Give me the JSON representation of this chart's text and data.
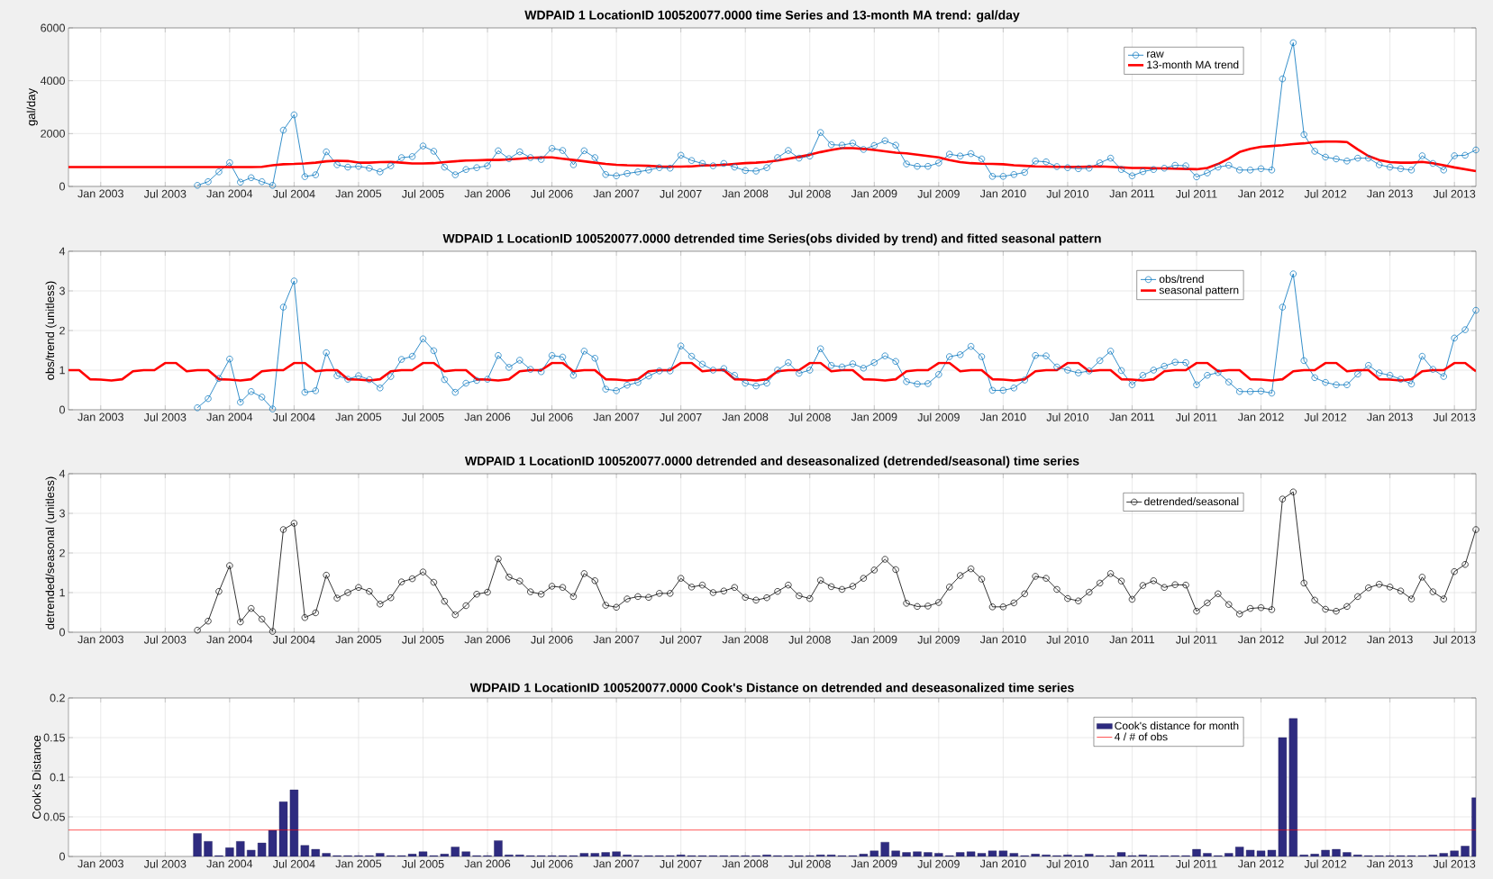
{
  "chart_data": [
    {
      "type": "line",
      "title": "WDPAID 1 LocationID 100520077.0000 time Series and 13-month MA trend: gal/day",
      "ylabel": "gal/day",
      "x": [
        "2002-10",
        "2002-11",
        "2002-12",
        "2003-01",
        "2003-02",
        "2003-03",
        "2003-04",
        "2003-05",
        "2003-06",
        "2003-07",
        "2003-08",
        "2003-09",
        "2003-10",
        "2003-11",
        "2003-12",
        "2004-01",
        "2004-02",
        "2004-03",
        "2004-04",
        "2004-05",
        "2004-06",
        "2004-07",
        "2004-08",
        "2004-09",
        "2004-10",
        "2004-11",
        "2004-12",
        "2005-01",
        "2005-02",
        "2005-03",
        "2005-04",
        "2005-05",
        "2005-06",
        "2005-07",
        "2005-08",
        "2005-09",
        "2005-10",
        "2005-11",
        "2005-12",
        "2006-01",
        "2006-02",
        "2006-03",
        "2006-04",
        "2006-05",
        "2006-06",
        "2006-07",
        "2006-08",
        "2006-09",
        "2006-10",
        "2006-11",
        "2006-12",
        "2007-01",
        "2007-02",
        "2007-03",
        "2007-04",
        "2007-05",
        "2007-06",
        "2007-07",
        "2007-08",
        "2007-09",
        "2007-10",
        "2007-11",
        "2007-12",
        "2008-01",
        "2008-02",
        "2008-03",
        "2008-04",
        "2008-05",
        "2008-06",
        "2008-07",
        "2008-08",
        "2008-09",
        "2008-10",
        "2008-11",
        "2008-12",
        "2009-01",
        "2009-02",
        "2009-03",
        "2009-04",
        "2009-05",
        "2009-06",
        "2009-07",
        "2009-08",
        "2009-09",
        "2009-10",
        "2009-11",
        "2009-12",
        "2010-01",
        "2010-02",
        "2010-03",
        "2010-04",
        "2010-05",
        "2010-06",
        "2010-07",
        "2010-08",
        "2010-09",
        "2010-10",
        "2010-11",
        "2010-12",
        "2011-01",
        "2011-02",
        "2011-03",
        "2011-04",
        "2011-05",
        "2011-06",
        "2011-07",
        "2011-08",
        "2011-09",
        "2011-10",
        "2011-11",
        "2011-12",
        "2012-01",
        "2012-02",
        "2012-03",
        "2012-04",
        "2012-05",
        "2012-06",
        "2012-07",
        "2012-08",
        "2012-09",
        "2012-10",
        "2012-11",
        "2012-12",
        "2013-01",
        "2013-02",
        "2013-03",
        "2013-04",
        "2013-05",
        "2013-06",
        "2013-07",
        "2013-08",
        "2013-09"
      ],
      "xlim": [
        "2002-10",
        "2013-09"
      ],
      "xticks": [
        {
          "value": "2003-01",
          "label": "Jan 2003"
        },
        {
          "value": "2003-07",
          "label": "Jul 2003"
        },
        {
          "value": "2004-01",
          "label": "Jan 2004"
        },
        {
          "value": "2004-07",
          "label": "Jul 2004"
        },
        {
          "value": "2005-01",
          "label": "Jan 2005"
        },
        {
          "value": "2005-07",
          "label": "Jul 2005"
        },
        {
          "value": "2006-01",
          "label": "Jan 2006"
        },
        {
          "value": "2006-07",
          "label": "Jul 2006"
        },
        {
          "value": "2007-01",
          "label": "Jan 2007"
        },
        {
          "value": "2007-07",
          "label": "Jul 2007"
        },
        {
          "value": "2008-01",
          "label": "Jan 2008"
        },
        {
          "value": "2008-07",
          "label": "Jul 2008"
        },
        {
          "value": "2009-01",
          "label": "Jan 2009"
        },
        {
          "value": "2009-07",
          "label": "Jul 2009"
        },
        {
          "value": "2010-01",
          "label": "Jan 2010"
        },
        {
          "value": "2010-07",
          "label": "Jul 2010"
        },
        {
          "value": "2011-01",
          "label": "Jan 2011"
        },
        {
          "value": "2011-07",
          "label": "Jul 2011"
        },
        {
          "value": "2012-01",
          "label": "Jan 2012"
        },
        {
          "value": "2012-07",
          "label": "Jul 2012"
        },
        {
          "value": "2013-01",
          "label": "Jan 2013"
        },
        {
          "value": "2013-07",
          "label": "Jul 2013"
        }
      ],
      "ylim": [
        0,
        6000
      ],
      "yticks": [
        0,
        2000,
        4000,
        6000
      ],
      "grid": true,
      "legend": "top right",
      "series": [
        {
          "name": "raw",
          "color": "#0072bd",
          "marker": "circle",
          "values": [
            null,
            null,
            null,
            null,
            null,
            null,
            null,
            null,
            null,
            null,
            null,
            null,
            40,
            180,
            550,
            900,
            160,
            330,
            180,
            40,
            2130,
            2710,
            370,
            440,
            1310,
            820,
            730,
            760,
            690,
            550,
            780,
            1090,
            1130,
            1530,
            1330,
            730,
            440,
            640,
            710,
            780,
            1350,
            1050,
            1310,
            1090,
            1020,
            1440,
            1360,
            820,
            1350,
            1090,
            450,
            400,
            490,
            550,
            620,
            710,
            690,
            1180,
            980,
            870,
            780,
            870,
            730,
            600,
            580,
            710,
            1090,
            1360,
            1070,
            1150,
            2040,
            1580,
            1560,
            1640,
            1400,
            1550,
            1730,
            1560,
            850,
            760,
            760,
            890,
            1220,
            1150,
            1240,
            1040,
            380,
            380,
            450,
            530,
            960,
            930,
            750,
            710,
            670,
            690,
            890,
            1070,
            640,
            400,
            560,
            640,
            690,
            800,
            780,
            360,
            510,
            730,
            800,
            620,
            620,
            670,
            620,
            4070,
            5440,
            1960,
            1330,
            1110,
            1040,
            960,
            1070,
            1070,
            820,
            730,
            670,
            620,
            1160,
            870,
            620,
            1160,
            1180,
            1380
          ]
        },
        {
          "name": "13-month MA trend",
          "color": "#ff0000",
          "marker": "none",
          "values": [
            730,
            730,
            730,
            730,
            730,
            730,
            730,
            730,
            730,
            730,
            730,
            730,
            730,
            730,
            730,
            730,
            730,
            730,
            740,
            800,
            840,
            850,
            870,
            900,
            950,
            970,
            960,
            900,
            900,
            920,
            930,
            900,
            870,
            870,
            880,
            920,
            950,
            980,
            990,
            1000,
            1000,
            1020,
            1050,
            1080,
            1100,
            1100,
            1050,
            1000,
            950,
            900,
            850,
            820,
            800,
            790,
            780,
            760,
            750,
            750,
            760,
            790,
            800,
            820,
            850,
            880,
            900,
            930,
            980,
            1050,
            1120,
            1200,
            1300,
            1380,
            1450,
            1450,
            1420,
            1380,
            1330,
            1280,
            1250,
            1200,
            1150,
            1100,
            1000,
            920,
            880,
            860,
            850,
            840,
            800,
            780,
            760,
            750,
            740,
            740,
            740,
            750,
            760,
            740,
            720,
            700,
            700,
            690,
            680,
            670,
            660,
            650,
            700,
            850,
            1050,
            1300,
            1420,
            1500,
            1530,
            1560,
            1600,
            1630,
            1680,
            1700,
            1700,
            1680,
            1400,
            1150,
            1000,
            920,
            900,
            900,
            930,
            880,
            800,
            720,
            650,
            580
          ]
        }
      ]
    },
    {
      "type": "line",
      "title": "WDPAID 1 LocationID 100520077.0000 detrended time Series(obs divided by trend) and fitted seasonal pattern",
      "ylabel": "obs/trend (unitless)",
      "x": [
        "2002-10",
        "2002-11",
        "2002-12",
        "2003-01",
        "2003-02",
        "2003-03",
        "2003-04",
        "2003-05",
        "2003-06",
        "2003-07",
        "2003-08",
        "2003-09",
        "2003-10",
        "2003-11",
        "2003-12",
        "2004-01",
        "2004-02",
        "2004-03",
        "2004-04",
        "2004-05",
        "2004-06",
        "2004-07",
        "2004-08",
        "2004-09",
        "2004-10",
        "2004-11",
        "2004-12",
        "2005-01",
        "2005-02",
        "2005-03",
        "2005-04",
        "2005-05",
        "2005-06",
        "2005-07",
        "2005-08",
        "2005-09",
        "2005-10",
        "2005-11",
        "2005-12",
        "2006-01",
        "2006-02",
        "2006-03",
        "2006-04",
        "2006-05",
        "2006-06",
        "2006-07",
        "2006-08",
        "2006-09",
        "2006-10",
        "2006-11",
        "2006-12",
        "2007-01",
        "2007-02",
        "2007-03",
        "2007-04",
        "2007-05",
        "2007-06",
        "2007-07",
        "2007-08",
        "2007-09",
        "2007-10",
        "2007-11",
        "2007-12",
        "2008-01",
        "2008-02",
        "2008-03",
        "2008-04",
        "2008-05",
        "2008-06",
        "2008-07",
        "2008-08",
        "2008-09",
        "2008-10",
        "2008-11",
        "2008-12",
        "2009-01",
        "2009-02",
        "2009-03",
        "2009-04",
        "2009-05",
        "2009-06",
        "2009-07",
        "2009-08",
        "2009-09",
        "2009-10",
        "2009-11",
        "2009-12",
        "2010-01",
        "2010-02",
        "2010-03",
        "2010-04",
        "2010-05",
        "2010-06",
        "2010-07",
        "2010-08",
        "2010-09",
        "2010-10",
        "2010-11",
        "2010-12",
        "2011-01",
        "2011-02",
        "2011-03",
        "2011-04",
        "2011-05",
        "2011-06",
        "2011-07",
        "2011-08",
        "2011-09",
        "2011-10",
        "2011-11",
        "2011-12",
        "2012-01",
        "2012-02",
        "2012-03",
        "2012-04",
        "2012-05",
        "2012-06",
        "2012-07",
        "2012-08",
        "2012-09",
        "2012-10",
        "2012-11",
        "2012-12",
        "2013-01",
        "2013-02",
        "2013-03",
        "2013-04",
        "2013-05",
        "2013-06",
        "2013-07",
        "2013-08",
        "2013-09"
      ],
      "xlim": [
        "2002-10",
        "2013-09"
      ],
      "xticks": [
        {
          "value": "2003-01",
          "label": "Jan 2003"
        },
        {
          "value": "2003-07",
          "label": "Jul 2003"
        },
        {
          "value": "2004-01",
          "label": "Jan 2004"
        },
        {
          "value": "2004-07",
          "label": "Jul 2004"
        },
        {
          "value": "2005-01",
          "label": "Jan 2005"
        },
        {
          "value": "2005-07",
          "label": "Jul 2005"
        },
        {
          "value": "2006-01",
          "label": "Jan 2006"
        },
        {
          "value": "2006-07",
          "label": "Jul 2006"
        },
        {
          "value": "2007-01",
          "label": "Jan 2007"
        },
        {
          "value": "2007-07",
          "label": "Jul 2007"
        },
        {
          "value": "2008-01",
          "label": "Jan 2008"
        },
        {
          "value": "2008-07",
          "label": "Jul 2008"
        },
        {
          "value": "2009-01",
          "label": "Jan 2009"
        },
        {
          "value": "2009-07",
          "label": "Jul 2009"
        },
        {
          "value": "2010-01",
          "label": "Jan 2010"
        },
        {
          "value": "2010-07",
          "label": "Jul 2010"
        },
        {
          "value": "2011-01",
          "label": "Jan 2011"
        },
        {
          "value": "2011-07",
          "label": "Jul 2011"
        },
        {
          "value": "2012-01",
          "label": "Jan 2012"
        },
        {
          "value": "2012-07",
          "label": "Jul 2012"
        },
        {
          "value": "2013-01",
          "label": "Jan 2013"
        },
        {
          "value": "2013-07",
          "label": "Jul 2013"
        }
      ],
      "ylim": [
        0,
        4
      ],
      "yticks": [
        0,
        1,
        2,
        3,
        4
      ],
      "grid": true,
      "legend": "top right",
      "series": [
        {
          "name": "obs/trend",
          "color": "#0072bd",
          "marker": "circle",
          "values": [
            null,
            null,
            null,
            null,
            null,
            null,
            null,
            null,
            null,
            null,
            null,
            null,
            0.05,
            0.28,
            0.79,
            1.28,
            0.19,
            0.46,
            0.32,
            0.02,
            2.59,
            3.25,
            0.44,
            0.48,
            1.44,
            0.86,
            0.77,
            0.86,
            0.76,
            0.55,
            0.84,
            1.27,
            1.35,
            1.79,
            1.49,
            0.76,
            0.44,
            0.67,
            0.74,
            0.77,
            1.37,
            1.07,
            1.25,
            1.02,
            0.96,
            1.37,
            1.33,
            0.87,
            1.48,
            1.3,
            0.52,
            0.48,
            0.62,
            0.69,
            0.85,
            0.98,
            0.98,
            1.61,
            1.35,
            1.15,
            1.0,
            1.04,
            0.87,
            0.67,
            0.6,
            0.67,
            1.0,
            1.19,
            0.92,
            1.0,
            1.54,
            1.12,
            1.08,
            1.16,
            1.05,
            1.19,
            1.36,
            1.22,
            0.71,
            0.65,
            0.66,
            0.89,
            1.34,
            1.39,
            1.6,
            1.34,
            0.49,
            0.49,
            0.55,
            0.75,
            1.37,
            1.36,
            1.08,
            1.0,
            0.93,
            0.98,
            1.24,
            1.48,
            0.99,
            0.63,
            0.87,
            1.0,
            1.1,
            1.2,
            1.19,
            0.63,
            0.87,
            0.94,
            0.7,
            0.46,
            0.46,
            0.47,
            0.42,
            2.59,
            3.43,
            1.24,
            0.81,
            0.69,
            0.63,
            0.63,
            0.9,
            1.12,
            0.93,
            0.87,
            0.77,
            0.65,
            1.35,
            1.02,
            0.84,
            1.81,
            2.02,
            2.51
          ]
        },
        {
          "name": "seasonal pattern",
          "color": "#ff0000",
          "marker": "none",
          "values": [
            1.0,
            1.0,
            0.77,
            0.76,
            0.74,
            0.77,
            0.97,
            1.0,
            1.0,
            1.18,
            1.18,
            0.97,
            1.0,
            1.0,
            0.77,
            0.76,
            0.74,
            0.77,
            0.97,
            1.0,
            1.0,
            1.18,
            1.18,
            0.97,
            1.0,
            1.0,
            0.77,
            0.76,
            0.74,
            0.77,
            0.97,
            1.0,
            1.0,
            1.18,
            1.18,
            0.97,
            1.0,
            1.0,
            0.77,
            0.76,
            0.74,
            0.77,
            0.97,
            1.0,
            1.0,
            1.18,
            1.18,
            0.97,
            1.0,
            1.0,
            0.77,
            0.76,
            0.74,
            0.77,
            0.97,
            1.0,
            1.0,
            1.18,
            1.18,
            0.97,
            1.0,
            1.0,
            0.77,
            0.76,
            0.74,
            0.77,
            0.97,
            1.0,
            1.0,
            1.18,
            1.18,
            0.97,
            1.0,
            1.0,
            0.77,
            0.76,
            0.74,
            0.77,
            0.97,
            1.0,
            1.0,
            1.18,
            1.18,
            0.97,
            1.0,
            1.0,
            0.77,
            0.76,
            0.74,
            0.77,
            0.97,
            1.0,
            1.0,
            1.18,
            1.18,
            0.97,
            1.0,
            1.0,
            0.77,
            0.76,
            0.74,
            0.77,
            0.97,
            1.0,
            1.0,
            1.18,
            1.18,
            0.97,
            1.0,
            1.0,
            0.77,
            0.76,
            0.74,
            0.77,
            0.97,
            1.0,
            1.0,
            1.18,
            1.18,
            0.97,
            1.0,
            1.0,
            0.77,
            0.76,
            0.74,
            0.77,
            0.97,
            1.0,
            1.0,
            1.18,
            1.18,
            0.97
          ]
        }
      ]
    },
    {
      "type": "line",
      "title": "WDPAID 1 LocationID 100520077.0000 detrended and deseasonalized (detrended/seasonal) time series",
      "ylabel": "detrended/seasonal (unitless)",
      "x": [
        "2003-10",
        "2003-11",
        "2003-12",
        "2004-01",
        "2004-02",
        "2004-03",
        "2004-04",
        "2004-05",
        "2004-06",
        "2004-07",
        "2004-08",
        "2004-09",
        "2004-10",
        "2004-11",
        "2004-12",
        "2005-01",
        "2005-02",
        "2005-03",
        "2005-04",
        "2005-05",
        "2005-06",
        "2005-07",
        "2005-08",
        "2005-09",
        "2005-10",
        "2005-11",
        "2005-12",
        "2006-01",
        "2006-02",
        "2006-03",
        "2006-04",
        "2006-05",
        "2006-06",
        "2006-07",
        "2006-08",
        "2006-09",
        "2006-10",
        "2006-11",
        "2006-12",
        "2007-01",
        "2007-02",
        "2007-03",
        "2007-04",
        "2007-05",
        "2007-06",
        "2007-07",
        "2007-08",
        "2007-09",
        "2007-10",
        "2007-11",
        "2007-12",
        "2008-01",
        "2008-02",
        "2008-03",
        "2008-04",
        "2008-05",
        "2008-06",
        "2008-07",
        "2008-08",
        "2008-09",
        "2008-10",
        "2008-11",
        "2008-12",
        "2009-01",
        "2009-02",
        "2009-03",
        "2009-04",
        "2009-05",
        "2009-06",
        "2009-07",
        "2009-08",
        "2009-09",
        "2009-10",
        "2009-11",
        "2009-12",
        "2010-01",
        "2010-02",
        "2010-03",
        "2010-04",
        "2010-05",
        "2010-06",
        "2010-07",
        "2010-08",
        "2010-09",
        "2010-10",
        "2010-11",
        "2010-12",
        "2011-01",
        "2011-02",
        "2011-03",
        "2011-04",
        "2011-05",
        "2011-06",
        "2011-07",
        "2011-08",
        "2011-09",
        "2011-10",
        "2011-11",
        "2011-12",
        "2012-01",
        "2012-02",
        "2012-03",
        "2012-04",
        "2012-05",
        "2012-06",
        "2012-07",
        "2012-08",
        "2012-09",
        "2012-10",
        "2012-11",
        "2012-12",
        "2013-01",
        "2013-02",
        "2013-03",
        "2013-04",
        "2013-05",
        "2013-06",
        "2013-07",
        "2013-08",
        "2013-09"
      ],
      "xlim": [
        "2002-10",
        "2013-09"
      ],
      "xticks": [
        {
          "value": "2003-01",
          "label": "Jan 2003"
        },
        {
          "value": "2003-07",
          "label": "Jul 2003"
        },
        {
          "value": "2004-01",
          "label": "Jan 2004"
        },
        {
          "value": "2004-07",
          "label": "Jul 2004"
        },
        {
          "value": "2005-01",
          "label": "Jan 2005"
        },
        {
          "value": "2005-07",
          "label": "Jul 2005"
        },
        {
          "value": "2006-01",
          "label": "Jan 2006"
        },
        {
          "value": "2006-07",
          "label": "Jul 2006"
        },
        {
          "value": "2007-01",
          "label": "Jan 2007"
        },
        {
          "value": "2007-07",
          "label": "Jul 2007"
        },
        {
          "value": "2008-01",
          "label": "Jan 2008"
        },
        {
          "value": "2008-07",
          "label": "Jul 2008"
        },
        {
          "value": "2009-01",
          "label": "Jan 2009"
        },
        {
          "value": "2009-07",
          "label": "Jul 2009"
        },
        {
          "value": "2010-01",
          "label": "Jan 2010"
        },
        {
          "value": "2010-07",
          "label": "Jul 2010"
        },
        {
          "value": "2011-01",
          "label": "Jan 2011"
        },
        {
          "value": "2011-07",
          "label": "Jul 2011"
        },
        {
          "value": "2012-01",
          "label": "Jan 2012"
        },
        {
          "value": "2012-07",
          "label": "Jul 2012"
        },
        {
          "value": "2013-01",
          "label": "Jan 2013"
        },
        {
          "value": "2013-07",
          "label": "Jul 2013"
        }
      ],
      "ylim": [
        0,
        4
      ],
      "yticks": [
        0,
        1,
        2,
        3,
        4
      ],
      "grid": true,
      "legend": "top right",
      "series": [
        {
          "name": "detrended/seasonal",
          "color": "#000000",
          "marker": "circle",
          "values": [
            0.05,
            0.28,
            1.03,
            1.68,
            0.26,
            0.6,
            0.33,
            0.02,
            2.59,
            2.75,
            0.37,
            0.49,
            1.44,
            0.86,
            1.0,
            1.13,
            1.03,
            0.71,
            0.87,
            1.27,
            1.35,
            1.52,
            1.26,
            0.78,
            0.44,
            0.67,
            0.96,
            1.01,
            1.85,
            1.39,
            1.29,
            1.02,
            0.96,
            1.16,
            1.13,
            0.9,
            1.48,
            1.3,
            0.68,
            0.63,
            0.84,
            0.9,
            0.88,
            0.98,
            0.98,
            1.36,
            1.14,
            1.19,
            1.0,
            1.04,
            1.13,
            0.88,
            0.81,
            0.87,
            1.03,
            1.19,
            0.92,
            0.85,
            1.31,
            1.15,
            1.08,
            1.16,
            1.36,
            1.57,
            1.84,
            1.58,
            0.73,
            0.65,
            0.66,
            0.75,
            1.14,
            1.43,
            1.6,
            1.34,
            0.64,
            0.64,
            0.74,
            0.97,
            1.41,
            1.36,
            1.08,
            0.85,
            0.79,
            1.01,
            1.24,
            1.48,
            1.29,
            0.83,
            1.18,
            1.3,
            1.13,
            1.2,
            1.19,
            0.53,
            0.74,
            0.97,
            0.7,
            0.46,
            0.6,
            0.62,
            0.57,
            3.36,
            3.54,
            1.24,
            0.81,
            0.58,
            0.53,
            0.65,
            0.9,
            1.12,
            1.21,
            1.14,
            1.04,
            0.84,
            1.39,
            1.02,
            0.84,
            1.53,
            1.71,
            2.59
          ]
        }
      ]
    },
    {
      "type": "bar",
      "title": "WDPAID 1 LocationID 100520077.0000 Cook's Distance on detrended and deseasonalized time series",
      "ylabel": "Cook's Distance",
      "x": [
        "2003-10",
        "2003-11",
        "2003-12",
        "2004-01",
        "2004-02",
        "2004-03",
        "2004-04",
        "2004-05",
        "2004-06",
        "2004-07",
        "2004-08",
        "2004-09",
        "2004-10",
        "2004-11",
        "2004-12",
        "2005-01",
        "2005-02",
        "2005-03",
        "2005-04",
        "2005-05",
        "2005-06",
        "2005-07",
        "2005-08",
        "2005-09",
        "2005-10",
        "2005-11",
        "2005-12",
        "2006-01",
        "2006-02",
        "2006-03",
        "2006-04",
        "2006-05",
        "2006-06",
        "2006-07",
        "2006-08",
        "2006-09",
        "2006-10",
        "2006-11",
        "2006-12",
        "2007-01",
        "2007-02",
        "2007-03",
        "2007-04",
        "2007-05",
        "2007-06",
        "2007-07",
        "2007-08",
        "2007-09",
        "2007-10",
        "2007-11",
        "2007-12",
        "2008-01",
        "2008-02",
        "2008-03",
        "2008-04",
        "2008-05",
        "2008-06",
        "2008-07",
        "2008-08",
        "2008-09",
        "2008-10",
        "2008-11",
        "2008-12",
        "2009-01",
        "2009-02",
        "2009-03",
        "2009-04",
        "2009-05",
        "2009-06",
        "2009-07",
        "2009-08",
        "2009-09",
        "2009-10",
        "2009-11",
        "2009-12",
        "2010-01",
        "2010-02",
        "2010-03",
        "2010-04",
        "2010-05",
        "2010-06",
        "2010-07",
        "2010-08",
        "2010-09",
        "2010-10",
        "2010-11",
        "2010-12",
        "2011-01",
        "2011-02",
        "2011-03",
        "2011-04",
        "2011-05",
        "2011-06",
        "2011-07",
        "2011-08",
        "2011-09",
        "2011-10",
        "2011-11",
        "2011-12",
        "2012-01",
        "2012-02",
        "2012-03",
        "2012-04",
        "2012-05",
        "2012-06",
        "2012-07",
        "2012-08",
        "2012-09",
        "2012-10",
        "2012-11",
        "2012-12",
        "2013-01",
        "2013-02",
        "2013-03",
        "2013-04",
        "2013-05",
        "2013-06",
        "2013-07",
        "2013-08",
        "2013-09"
      ],
      "xlim": [
        "2002-10",
        "2013-09"
      ],
      "xticks": [
        {
          "value": "2003-01",
          "label": "Jan 2003"
        },
        {
          "value": "2003-07",
          "label": "Jul 2003"
        },
        {
          "value": "2004-01",
          "label": "Jan 2004"
        },
        {
          "value": "2004-07",
          "label": "Jul 2004"
        },
        {
          "value": "2005-01",
          "label": "Jan 2005"
        },
        {
          "value": "2005-07",
          "label": "Jul 2005"
        },
        {
          "value": "2006-01",
          "label": "Jan 2006"
        },
        {
          "value": "2006-07",
          "label": "Jul 2006"
        },
        {
          "value": "2007-01",
          "label": "Jan 2007"
        },
        {
          "value": "2007-07",
          "label": "Jul 2007"
        },
        {
          "value": "2008-01",
          "label": "Jan 2008"
        },
        {
          "value": "2008-07",
          "label": "Jul 2008"
        },
        {
          "value": "2009-01",
          "label": "Jan 2009"
        },
        {
          "value": "2009-07",
          "label": "Jul 2009"
        },
        {
          "value": "2010-01",
          "label": "Jan 2010"
        },
        {
          "value": "2010-07",
          "label": "Jul 2010"
        },
        {
          "value": "2011-01",
          "label": "Jan 2011"
        },
        {
          "value": "2011-07",
          "label": "Jul 2011"
        },
        {
          "value": "2012-01",
          "label": "Jan 2012"
        },
        {
          "value": "2012-07",
          "label": "Jul 2012"
        },
        {
          "value": "2013-01",
          "label": "Jan 2013"
        },
        {
          "value": "2013-07",
          "label": "Jul 2013"
        }
      ],
      "ylim": [
        0,
        0.2
      ],
      "yticks": [
        0,
        0.05,
        0.1,
        0.15,
        0.2
      ],
      "grid": true,
      "legend": "top right",
      "series": [
        {
          "name": "Cook's distance for month",
          "color": "#2e2b80",
          "values": [
            0.029,
            0.019,
            0.001,
            0.011,
            0.019,
            0.008,
            0.017,
            0.033,
            0.069,
            0.084,
            0.014,
            0.009,
            0.004,
            0.001,
            0.001,
            0.001,
            0.001,
            0.004,
            0.001,
            0.001,
            0.003,
            0.006,
            0.001,
            0.003,
            0.012,
            0.006,
            0.001,
            0.001,
            0.02,
            0.002,
            0.002,
            0.001,
            0.001,
            0.001,
            0.001,
            0.001,
            0.004,
            0.004,
            0.005,
            0.006,
            0.002,
            0.001,
            0.001,
            0.001,
            0.001,
            0.002,
            0.001,
            0.001,
            0.001,
            0.001,
            0.001,
            0.001,
            0.001,
            0.002,
            0.001,
            0.001,
            0.001,
            0.001,
            0.002,
            0.002,
            0.001,
            0.001,
            0.003,
            0.007,
            0.018,
            0.007,
            0.005,
            0.006,
            0.005,
            0.004,
            0.001,
            0.005,
            0.006,
            0.004,
            0.007,
            0.007,
            0.004,
            0.001,
            0.003,
            0.002,
            0.001,
            0.002,
            0.001,
            0.003,
            0.001,
            0.001,
            0.005,
            0.001,
            0.002,
            0.001,
            0.001,
            0.001,
            0.001,
            0.009,
            0.004,
            0.001,
            0.004,
            0.012,
            0.008,
            0.007,
            0.008,
            0.15,
            0.174,
            0.002,
            0.003,
            0.008,
            0.009,
            0.005,
            0.002,
            0.001,
            0.001,
            0.001,
            0.001,
            0.001,
            0.001,
            0.002,
            0.004,
            0.007,
            0.013,
            0.074
          ]
        }
      ],
      "ref_lines": [
        {
          "axis": "y",
          "value": 0.0333,
          "label": "4 / # of obs",
          "color": "#ff0000",
          "line_style": "solid"
        }
      ]
    }
  ]
}
